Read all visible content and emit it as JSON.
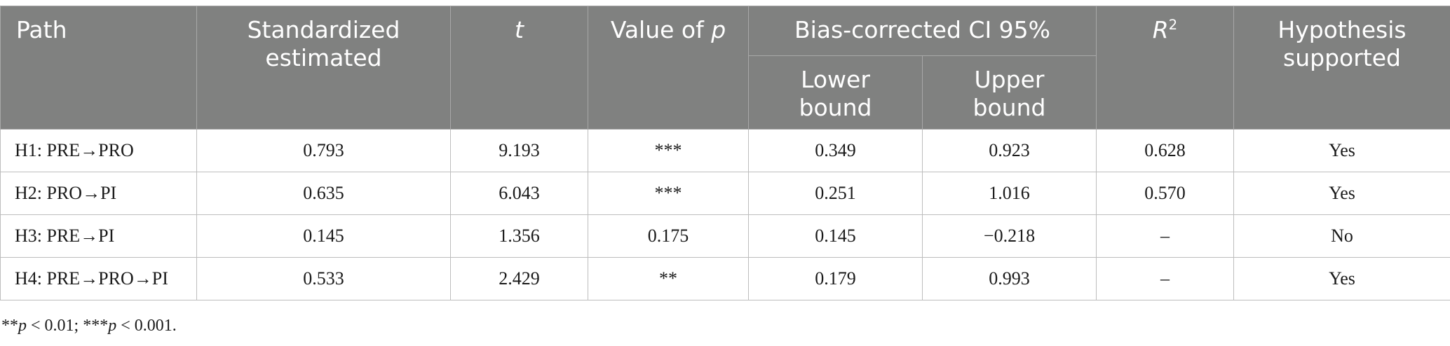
{
  "table": {
    "headers": {
      "path": "Path",
      "standardized_line1": "Standardized",
      "standardized_line2": "estimated",
      "t": "t",
      "p_prefix": "Value of ",
      "p_var": "p",
      "ci": "Bias-corrected CI 95%",
      "lower_line1": "Lower",
      "lower_line2": "bound",
      "upper_line1": "Upper",
      "upper_line2": "bound",
      "r2_base": "R",
      "r2_exp": "2",
      "hyp_line1": "Hypothesis",
      "hyp_line2": "supported"
    },
    "rows": [
      {
        "path": "H1: PRE→PRO",
        "std": "0.793",
        "t": "9.193",
        "p": "***",
        "lower": "0.349",
        "upper": "0.923",
        "r2": "0.628",
        "supported": "Yes"
      },
      {
        "path": "H2: PRO→PI",
        "std": "0.635",
        "t": "6.043",
        "p": "***",
        "lower": "0.251",
        "upper": "1.016",
        "r2": "0.570",
        "supported": "Yes"
      },
      {
        "path": "H3: PRE→PI",
        "std": "0.145",
        "t": "1.356",
        "p": "0.175",
        "lower": "0.145",
        "upper": "−0.218",
        "r2": "–",
        "supported": "No"
      },
      {
        "path": "H4: PRE→PRO→PI",
        "std": "0.533",
        "t": "2.429",
        "p": "**",
        "lower": "0.179",
        "upper": "0.993",
        "r2": "–",
        "supported": "Yes"
      }
    ]
  },
  "note": {
    "part1": "**",
    "p1": "p",
    "part2": " < 0.01; ***",
    "p2": "p",
    "part3": " < 0.001."
  }
}
